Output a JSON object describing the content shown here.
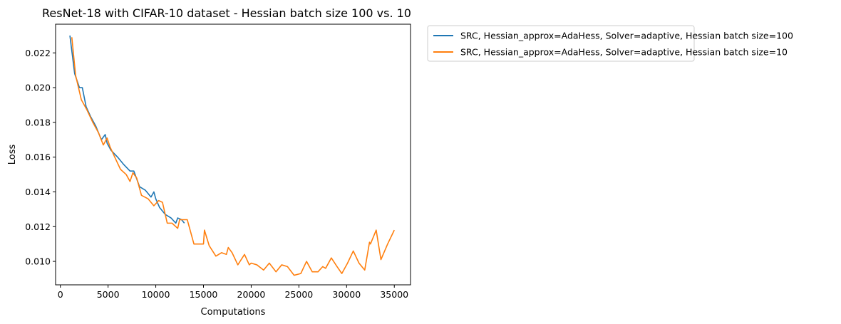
{
  "chart_data": {
    "type": "line",
    "title": "ResNet-18 with CIFAR-10 dataset - Hessian batch size 100 vs. 10",
    "xlabel": "Computations",
    "ylabel": "Loss",
    "xlim": [
      -500,
      36700
    ],
    "ylim": [
      0.00865,
      0.02365
    ],
    "xticks": [
      0,
      5000,
      10000,
      15000,
      20000,
      25000,
      30000,
      35000
    ],
    "xtick_labels": [
      "0",
      "5000",
      "10000",
      "15000",
      "20000",
      "25000",
      "30000",
      "35000"
    ],
    "yticks": [
      0.01,
      0.012,
      0.014,
      0.016,
      0.018,
      0.02,
      0.022
    ],
    "ytick_labels": [
      "0.010",
      "0.012",
      "0.014",
      "0.016",
      "0.018",
      "0.020",
      "0.022"
    ],
    "grid": false,
    "legend_placement": "outside-upper-right",
    "series": [
      {
        "name": "SRC, Hessian_approx=AdaHess, Solver=adaptive, Hessian batch size=100",
        "color": "#1f77b4",
        "x": [
          1000,
          1500,
          2000,
          2300,
          2700,
          3200,
          3700,
          4300,
          4700,
          4900,
          5300,
          6000,
          6600,
          7300,
          7700,
          8300,
          8900,
          9500,
          9800,
          10000,
          10400,
          11000,
          11600,
          12100,
          12300,
          12700,
          13000
        ],
        "y": [
          0.023,
          0.0208,
          0.02,
          0.02,
          0.0189,
          0.0183,
          0.0178,
          0.017,
          0.0173,
          0.0168,
          0.0164,
          0.016,
          0.0156,
          0.0152,
          0.0152,
          0.0143,
          0.0141,
          0.0137,
          0.014,
          0.0136,
          0.0131,
          0.0127,
          0.0125,
          0.0122,
          0.0125,
          0.0124,
          0.0122
        ]
      },
      {
        "name": "SRC, Hessian_approx=AdaHess, Solver=adaptive, Hessian batch size=10",
        "color": "#ff7f0e",
        "x": [
          1200,
          1600,
          2200,
          2800,
          3400,
          4000,
          4500,
          4900,
          5200,
          5700,
          6300,
          6900,
          7300,
          7600,
          8000,
          8500,
          9200,
          9800,
          10300,
          10700,
          11200,
          11700,
          12300,
          12500,
          13000,
          13300,
          14000,
          15000,
          15100,
          15600,
          16300,
          16900,
          17400,
          17600,
          18000,
          18600,
          19300,
          19800,
          20000,
          20600,
          21300,
          21900,
          22600,
          23200,
          23800,
          24500,
          25200,
          25800,
          26400,
          27000,
          27500,
          27800,
          28400,
          29000,
          29500,
          30100,
          30700,
          31300,
          31900,
          32400,
          32500,
          33100,
          33600,
          34300,
          35000
        ],
        "y": [
          0.0229,
          0.0207,
          0.0193,
          0.0187,
          0.018,
          0.0174,
          0.0167,
          0.0171,
          0.0166,
          0.016,
          0.0153,
          0.015,
          0.0146,
          0.0151,
          0.0148,
          0.0138,
          0.0136,
          0.0132,
          0.0135,
          0.0134,
          0.0122,
          0.0122,
          0.0119,
          0.0124,
          0.0124,
          0.0124,
          0.011,
          0.011,
          0.0118,
          0.0109,
          0.0103,
          0.0105,
          0.0104,
          0.0108,
          0.0105,
          0.0098,
          0.0104,
          0.0098,
          0.0099,
          0.0098,
          0.0095,
          0.0099,
          0.0094,
          0.0098,
          0.0097,
          0.0092,
          0.0093,
          0.01,
          0.0094,
          0.0094,
          0.0097,
          0.0096,
          0.0102,
          0.0097,
          0.0093,
          0.0099,
          0.0106,
          0.0099,
          0.0095,
          0.0111,
          0.011,
          0.0118,
          0.0101,
          0.011,
          0.0118
        ]
      }
    ]
  }
}
